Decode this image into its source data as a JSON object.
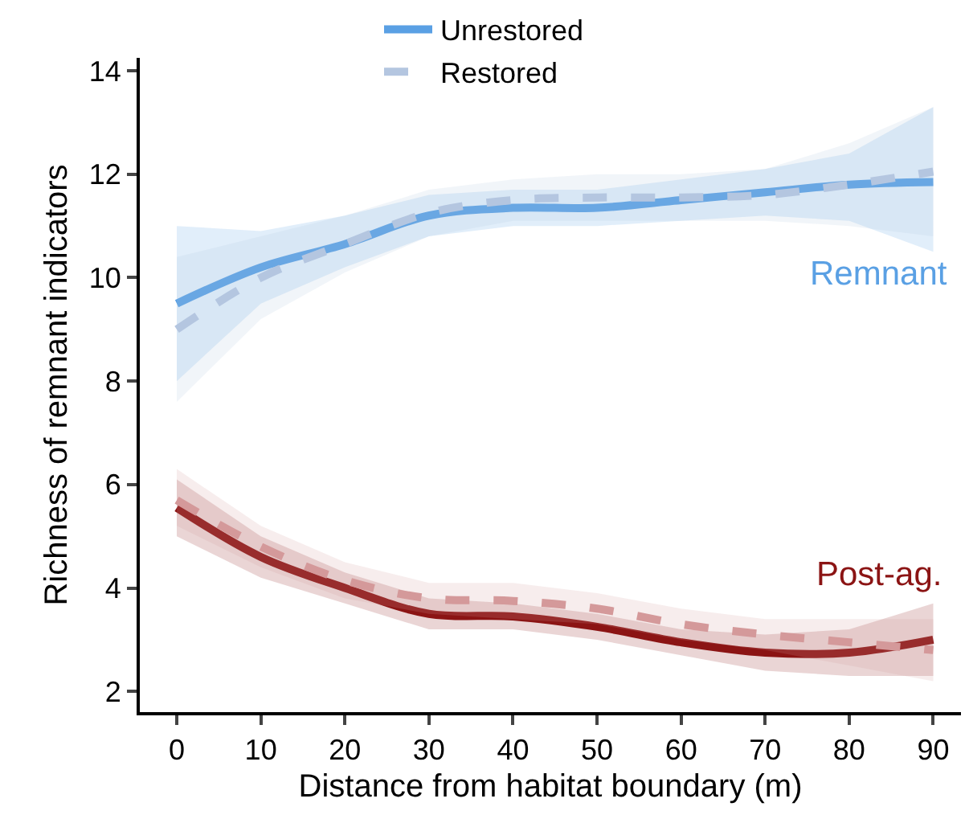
{
  "chart_data": {
    "type": "line",
    "xlabel": "Distance from habitat boundary (m)",
    "ylabel": "Richness of remnant indicators",
    "x": [
      0,
      10,
      20,
      30,
      40,
      50,
      60,
      70,
      80,
      90
    ],
    "series": [
      {
        "name": "Unrestored",
        "color": "#5aa0e4",
        "line_style": "solid",
        "values": [
          9.5,
          10.2,
          10.65,
          11.2,
          11.35,
          11.35,
          11.5,
          11.65,
          11.8,
          11.85
        ],
        "lower": [
          8.0,
          9.5,
          10.2,
          10.8,
          11.0,
          11.0,
          11.1,
          11.2,
          11.1,
          10.5
        ],
        "upper": [
          11.0,
          10.9,
          11.2,
          11.6,
          11.7,
          11.7,
          11.9,
          12.1,
          12.4,
          13.3
        ]
      },
      {
        "name": "Restored",
        "color": "#b4c6e0",
        "line_style": "dashed",
        "values": [
          9.0,
          10.0,
          10.65,
          11.25,
          11.5,
          11.55,
          11.55,
          11.6,
          11.8,
          12.05
        ],
        "lower": [
          7.6,
          9.2,
          10.1,
          10.8,
          11.1,
          11.1,
          11.1,
          11.1,
          11.0,
          10.8
        ],
        "upper": [
          10.4,
          10.8,
          11.2,
          11.7,
          11.9,
          12.0,
          12.0,
          12.1,
          12.6,
          13.3
        ]
      },
      {
        "color": "#8b1414",
        "line_style": "solid",
        "values": [
          5.55,
          4.6,
          4.0,
          3.5,
          3.45,
          3.25,
          2.95,
          2.75,
          2.75,
          3.0
        ],
        "lower": [
          5.0,
          4.2,
          3.7,
          3.2,
          3.2,
          3.0,
          2.7,
          2.4,
          2.3,
          2.3
        ],
        "upper": [
          6.1,
          5.0,
          4.3,
          3.8,
          3.7,
          3.5,
          3.2,
          3.1,
          3.2,
          3.7
        ]
      },
      {
        "color": "#d4999a",
        "line_style": "dashed",
        "values": [
          5.7,
          4.8,
          4.15,
          3.8,
          3.75,
          3.6,
          3.3,
          3.1,
          2.95,
          2.8
        ],
        "lower": [
          5.2,
          4.4,
          3.8,
          3.5,
          3.4,
          3.3,
          3.0,
          2.8,
          2.5,
          2.2
        ],
        "upper": [
          6.3,
          5.2,
          4.5,
          4.1,
          4.1,
          3.9,
          3.6,
          3.4,
          3.4,
          3.4
        ]
      }
    ],
    "annotations": [
      "Remnant",
      "Post-ag."
    ],
    "xlim": [
      -4.4,
      93.3
    ],
    "ylim": [
      1.6,
      14.25
    ],
    "xticks": [
      0,
      10,
      20,
      30,
      40,
      50,
      60,
      70,
      80,
      90
    ],
    "yticks": [
      2,
      4,
      6,
      8,
      10,
      12,
      14
    ],
    "grid": false,
    "legend": "top",
    "marker": "none"
  }
}
